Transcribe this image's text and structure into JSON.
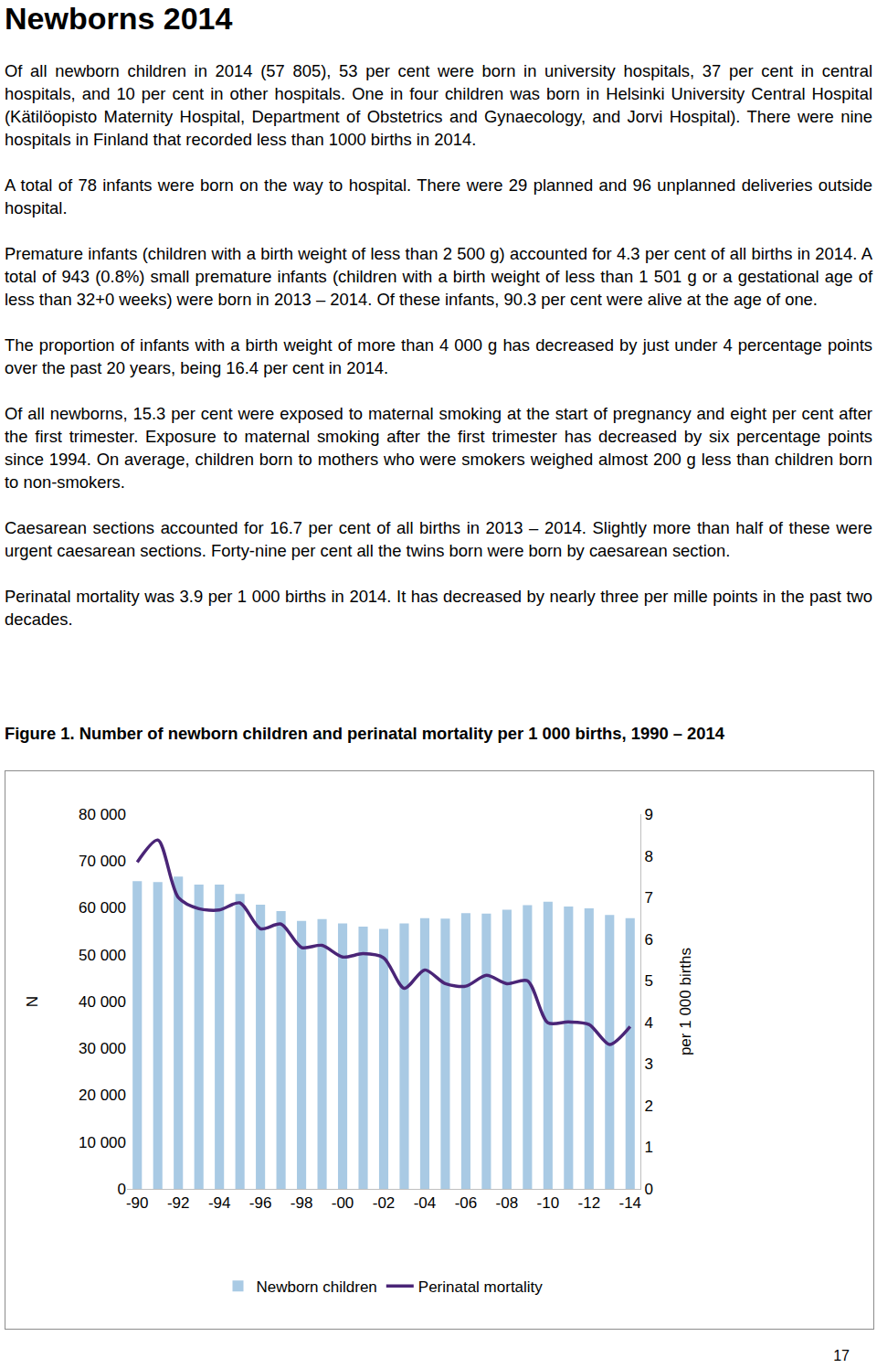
{
  "document": {
    "title": "Newborns 2014",
    "paragraphs": [
      "Of all newborn children in 2014 (57 805), 53 per cent were born in university hospitals, 37 per cent in central hospitals, and 10 per cent in other hospitals. One in four children was born in Helsinki University Central Hospital (Kätilöopisto Maternity Hospital, Department of Obstetrics and Gynaecology, and Jorvi Hospital). There were nine hospitals in Finland that recorded less than 1000 births in 2014.",
      "A total of 78 infants were born on the way to hospital. There were 29 planned and 96 unplanned deliveries outside hospital.",
      "Premature infants (children with a birth weight of less than 2 500 g) accounted for 4.3 per cent of all births in 2014. A total of 943 (0.8%) small premature infants (children with a birth weight of less than 1 501 g or a gestational age of less than 32+0 weeks) were born in 2013 – 2014. Of these infants, 90.3 per cent were alive at the age of one.",
      "The proportion of infants with a birth weight of more than 4 000 g has decreased by just under 4 percentage points over the past 20 years, being 16.4 per cent in 2014.",
      "Of all newborns, 15.3 per cent were exposed to maternal smoking at the start of pregnancy and eight per cent after the first trimester. Exposure to maternal smoking after the first trimester has decreased by six percentage points since 1994. On average, children born to mothers who were smokers weighed almost 200 g less than children born to non-smokers.",
      "Caesarean sections accounted for 16.7 per cent of all births in 2013 – 2014. Slightly more than half of these were urgent caesarean sections. Forty-nine per cent all the twins born were born by caesarean section.",
      "Perinatal mortality was 3.9 per 1 000 births in 2014. It has decreased by nearly three per mille points in the past two decades."
    ],
    "page_number": "17"
  },
  "chart_data": {
    "type": "bar",
    "title": "Figure 1. Number of newborn children and perinatal mortality per 1 000 births, 1990 – 2014",
    "y_label": "N",
    "y2_label": "per 1 000 births",
    "categories": [
      "-90",
      null,
      "-92",
      null,
      "-94",
      null,
      "-96",
      null,
      "-98",
      null,
      "-00",
      null,
      "-02",
      null,
      "-04",
      null,
      "-06",
      null,
      "-08",
      null,
      "-10",
      null,
      "-12",
      null,
      "-14"
    ],
    "series": [
      {
        "name": "Newborn children",
        "type": "bar",
        "color": "#a9cae4",
        "values": [
          65700,
          65500,
          66700,
          65000,
          65000,
          63000,
          60700,
          59300,
          57200,
          57600,
          56700,
          56000,
          55500,
          56700,
          57800,
          57700,
          58900,
          58800,
          59600,
          60600,
          61300,
          60300,
          59900,
          58500,
          57805
        ]
      },
      {
        "name": "Perinatal mortality",
        "type": "line",
        "axis": "y2",
        "color": "#4a2577",
        "line_style": "solid",
        "values": [
          7.85,
          8.38,
          7.0,
          6.73,
          6.7,
          6.87,
          6.25,
          6.36,
          5.8,
          5.85,
          5.57,
          5.65,
          5.55,
          4.82,
          5.26,
          4.93,
          4.87,
          5.13,
          4.93,
          5.0,
          3.99,
          4.01,
          3.95,
          3.47,
          3.9
        ]
      }
    ],
    "ylim": [
      0,
      80000
    ],
    "yticks": [
      0,
      {
        "value": 10000,
        "label": "10 000"
      },
      {
        "value": 20000,
        "label": "20 000"
      },
      {
        "value": 30000,
        "label": "30 000"
      },
      {
        "value": 40000,
        "label": "40 000"
      },
      {
        "value": 50000,
        "label": "50 000"
      },
      {
        "value": 60000,
        "label": "60 000"
      },
      {
        "value": 70000,
        "label": "70 000"
      },
      {
        "value": 80000,
        "label": "80 000"
      }
    ],
    "y2lim": [
      0,
      9
    ],
    "y2ticks": [
      0,
      1,
      2,
      3,
      4,
      5,
      6,
      7,
      8,
      9
    ],
    "grid": false,
    "legend": "bottom"
  }
}
